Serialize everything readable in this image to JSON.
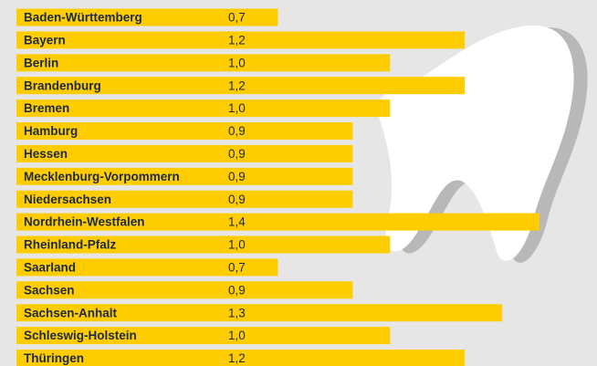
{
  "chart_data": {
    "type": "bar",
    "orientation": "horizontal",
    "categories": [
      "Baden-Württemberg",
      "Bayern",
      "Berlin",
      "Brandenburg",
      "Bremen",
      "Hamburg",
      "Hessen",
      "Mecklenburg-Vorpommern",
      "Niedersachsen",
      "Nordrhein-Westfalen",
      "Rheinland-Pfalz",
      "Saarland",
      "Sachsen",
      "Sachsen-Anhalt",
      "Schleswig-Holstein",
      "Thüringen"
    ],
    "values": [
      0.7,
      1.2,
      1.0,
      1.2,
      1.0,
      0.9,
      0.9,
      0.9,
      0.9,
      1.4,
      1.0,
      0.7,
      0.9,
      1.3,
      1.0,
      1.2
    ],
    "value_labels": [
      "0,7",
      "1,2",
      "1,0",
      "1,2",
      "1,0",
      "0,9",
      "0,9",
      "0,9",
      "0,9",
      "1,4",
      "1,0",
      "0,7",
      "0,9",
      "1,3",
      "1,0",
      "1,2"
    ],
    "color": "#ffcc00"
  }
}
